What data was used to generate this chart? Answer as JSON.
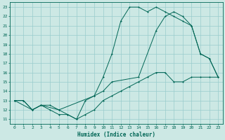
{
  "xlabel": "Humidex (Indice chaleur)",
  "bg_color": "#cce8e4",
  "line_color": "#006655",
  "grid_color": "#99cccc",
  "xlim": [
    -0.5,
    23.5
  ],
  "ylim": [
    10.5,
    23.5
  ],
  "yticks": [
    11,
    12,
    13,
    14,
    15,
    16,
    17,
    18,
    19,
    20,
    21,
    22,
    23
  ],
  "xticks": [
    0,
    1,
    2,
    3,
    4,
    5,
    6,
    7,
    8,
    9,
    10,
    11,
    12,
    13,
    14,
    15,
    16,
    17,
    18,
    19,
    20,
    21,
    22,
    23
  ],
  "line1_x": [
    0,
    1,
    2,
    3,
    4,
    5,
    6,
    7,
    8,
    9,
    10,
    11,
    12,
    13,
    14,
    15,
    16,
    17,
    18,
    19,
    20,
    21,
    22,
    23
  ],
  "line1_y": [
    13,
    13,
    12,
    12.5,
    12,
    11.5,
    11.5,
    11,
    11.5,
    12,
    13,
    13.5,
    14,
    14.5,
    15,
    15.5,
    16,
    16,
    15,
    15,
    15.5,
    15.5,
    15.5,
    15.5
  ],
  "line2_x": [
    0,
    1,
    2,
    3,
    4,
    5,
    6,
    7,
    8,
    9,
    10,
    11,
    12,
    13,
    14,
    15,
    16,
    17,
    18,
    19,
    20,
    21,
    22,
    23
  ],
  "line2_y": [
    13,
    13,
    12,
    12.5,
    12.5,
    12,
    11.5,
    11,
    13,
    13.5,
    15.5,
    18,
    21.5,
    23,
    23,
    22.5,
    23,
    22.5,
    22,
    21.5,
    21,
    18,
    17.5,
    15.5
  ],
  "line3_x": [
    0,
    2,
    3,
    5,
    9,
    10,
    11,
    14,
    16,
    17,
    18,
    19,
    20,
    21,
    22,
    23
  ],
  "line3_y": [
    13,
    12,
    12.5,
    12,
    13.5,
    14,
    15,
    15.5,
    20.5,
    22,
    22.5,
    22,
    21,
    18,
    17.5,
    15.5
  ]
}
